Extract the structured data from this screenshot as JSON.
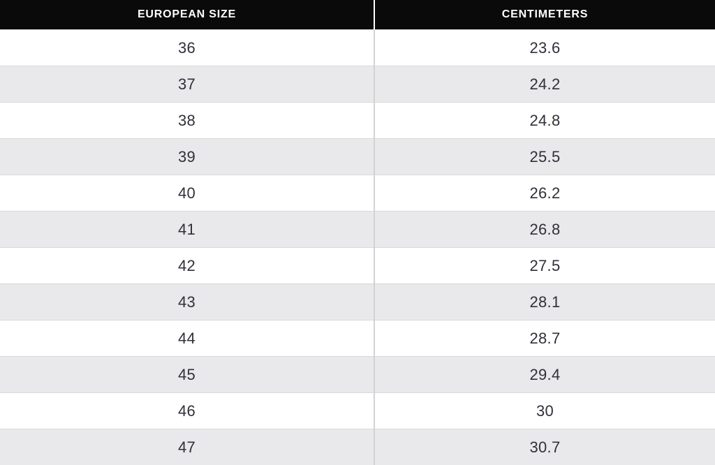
{
  "table": {
    "columns": [
      {
        "label": "EUROPEAN SIZE"
      },
      {
        "label": "CENTIMETERS"
      }
    ],
    "rows": [
      {
        "eu": "36",
        "cm": "23.6"
      },
      {
        "eu": "37",
        "cm": "24.2"
      },
      {
        "eu": "38",
        "cm": "24.8"
      },
      {
        "eu": "39",
        "cm": "25.5"
      },
      {
        "eu": "40",
        "cm": "26.2"
      },
      {
        "eu": "41",
        "cm": "26.8"
      },
      {
        "eu": "42",
        "cm": "27.5"
      },
      {
        "eu": "43",
        "cm": "28.1"
      },
      {
        "eu": "44",
        "cm": "28.7"
      },
      {
        "eu": "45",
        "cm": "29.4"
      },
      {
        "eu": "46",
        "cm": "30"
      },
      {
        "eu": "47",
        "cm": "30.7"
      }
    ]
  },
  "colors": {
    "header_bg": "#0a0a0a",
    "header_text": "#ffffff",
    "row_bg": "#ffffff",
    "row_alt_bg": "#e9e9eb",
    "cell_text": "#30303a",
    "row_border": "#d8d8d8",
    "column_divider": "#d2d2d2"
  },
  "chart_data": {
    "type": "table",
    "columns": [
      "EUROPEAN SIZE",
      "CENTIMETERS"
    ],
    "rows": [
      [
        36,
        23.6
      ],
      [
        37,
        24.2
      ],
      [
        38,
        24.8
      ],
      [
        39,
        25.5
      ],
      [
        40,
        26.2
      ],
      [
        41,
        26.8
      ],
      [
        42,
        27.5
      ],
      [
        43,
        28.1
      ],
      [
        44,
        28.7
      ],
      [
        45,
        29.4
      ],
      [
        46,
        30
      ],
      [
        47,
        30.7
      ]
    ]
  }
}
